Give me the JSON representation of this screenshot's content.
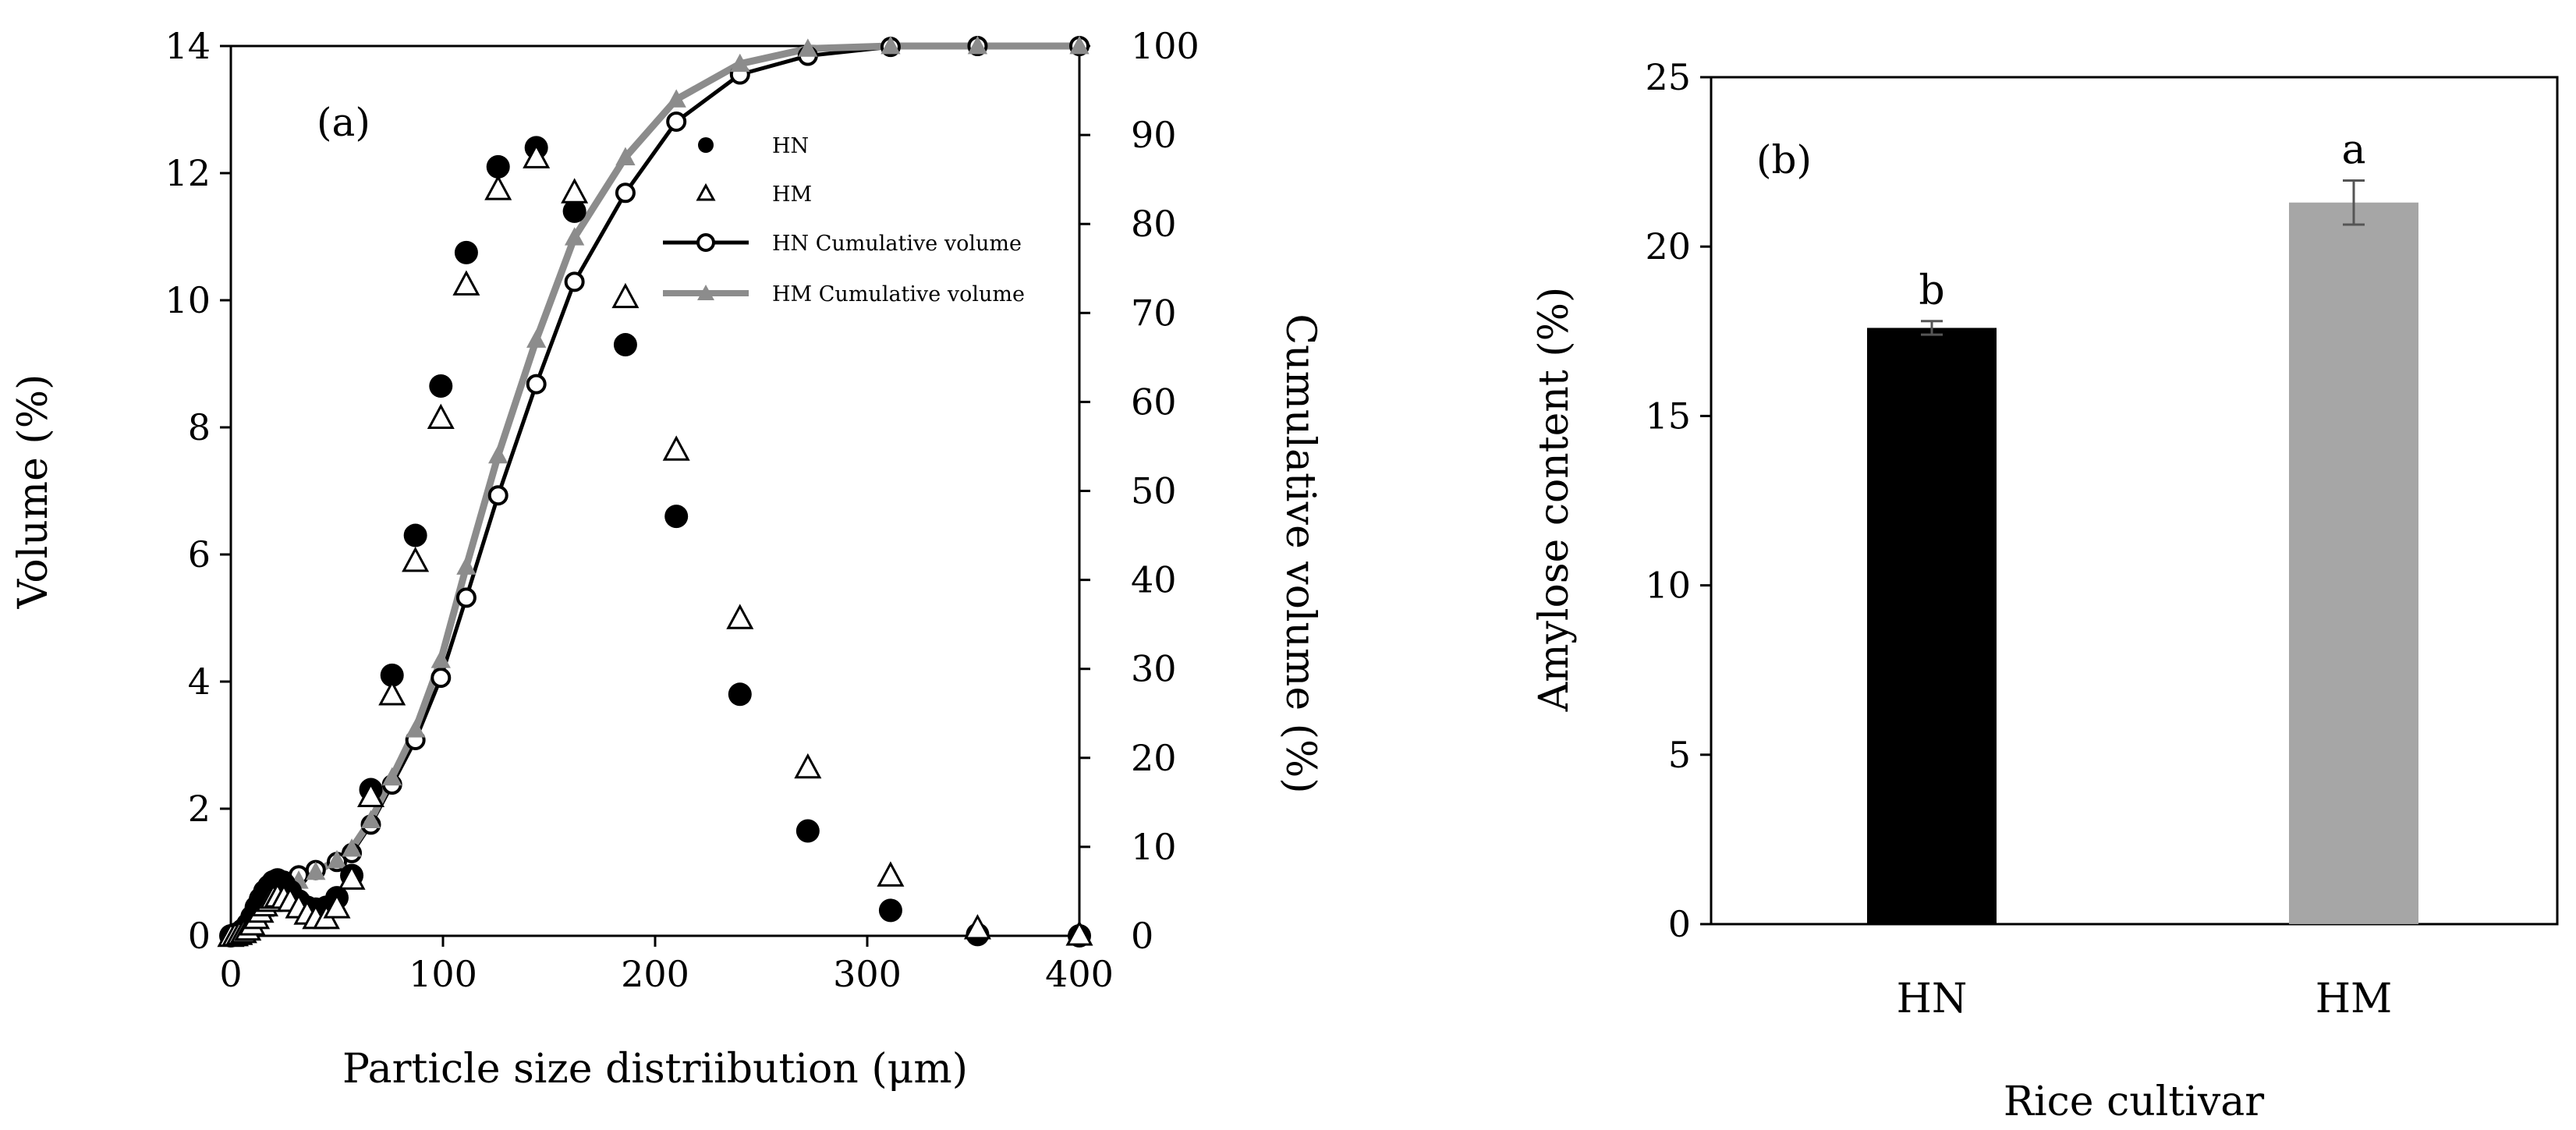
{
  "chart_data": [
    {
      "panel": "a",
      "type": "scatter",
      "panel_label": "(a)",
      "xlabel": "Particle size distriibution (μm)",
      "ylabel": "Volume (%)",
      "y2label": "Cumulative volume (%)",
      "xlim": [
        0,
        400
      ],
      "ylim": [
        0,
        14
      ],
      "y2lim": [
        0,
        100
      ],
      "xticks": [
        0,
        100,
        200,
        300,
        400
      ],
      "yticks": [
        0,
        2,
        4,
        6,
        8,
        10,
        12,
        14
      ],
      "y2ticks": [
        0,
        10,
        20,
        30,
        40,
        50,
        60,
        70,
        80,
        90,
        100
      ],
      "grid": false,
      "legend": {
        "position": "top-right",
        "entries": [
          "HN",
          "HM",
          "HN Cumulative volume",
          "HM Cumulative volume"
        ]
      },
      "series": [
        {
          "name": "HN",
          "kind": "volume",
          "axis": "left",
          "marker": "filled-circle",
          "x": [
            0,
            2,
            4,
            6,
            8,
            10,
            12,
            14,
            16,
            18,
            20,
            22,
            25,
            28,
            32,
            36,
            40,
            45,
            50,
            57,
            66,
            76,
            87,
            99,
            111,
            126,
            144,
            162,
            186,
            210,
            240,
            272,
            311,
            352,
            400
          ],
          "y": [
            0,
            0.02,
            0.05,
            0.1,
            0.18,
            0.3,
            0.45,
            0.58,
            0.7,
            0.78,
            0.85,
            0.88,
            0.82,
            0.7,
            0.55,
            0.45,
            0.42,
            0.45,
            0.6,
            0.95,
            2.3,
            4.1,
            6.3,
            8.65,
            10.75,
            12.1,
            12.4,
            11.4,
            9.3,
            6.6,
            3.8,
            1.65,
            0.4,
            0.02,
            0
          ]
        },
        {
          "name": "HM",
          "kind": "volume",
          "axis": "left",
          "marker": "open-triangle",
          "x": [
            0,
            2,
            4,
            6,
            8,
            10,
            12,
            14,
            16,
            18,
            20,
            22,
            25,
            28,
            32,
            36,
            40,
            45,
            50,
            57,
            66,
            76,
            87,
            99,
            111,
            126,
            144,
            162,
            186,
            210,
            240,
            272,
            311,
            352,
            400
          ],
          "y": [
            0,
            0.01,
            0.03,
            0.06,
            0.1,
            0.18,
            0.28,
            0.38,
            0.48,
            0.55,
            0.6,
            0.62,
            0.6,
            0.55,
            0.45,
            0.35,
            0.28,
            0.28,
            0.45,
            0.9,
            2.2,
            3.8,
            5.9,
            8.15,
            10.25,
            11.75,
            12.25,
            11.7,
            10.05,
            7.65,
            5.0,
            2.65,
            0.95,
            0.12,
            0.02
          ]
        },
        {
          "name": "HN Cumulative volume",
          "kind": "cumulative",
          "axis": "right",
          "marker": "open-circle-line",
          "x": [
            0,
            4,
            8,
            12,
            16,
            20,
            25,
            32,
            40,
            50,
            57,
            66,
            76,
            87,
            99,
            111,
            126,
            144,
            162,
            186,
            210,
            240,
            272,
            311,
            352,
            400
          ],
          "y": [
            0,
            0.3,
            1,
            2.5,
            4,
            5.2,
            6.2,
            6.8,
            7.4,
            8.3,
            9.3,
            12.5,
            17,
            22,
            29,
            38,
            49.5,
            62,
            73.5,
            83.5,
            91.5,
            96.8,
            98.9,
            99.9,
            100,
            100
          ]
        },
        {
          "name": "HM Cumulative volume",
          "kind": "cumulative",
          "axis": "right",
          "marker": "filled-triangle-line",
          "x": [
            0,
            4,
            8,
            12,
            16,
            20,
            25,
            32,
            40,
            50,
            57,
            66,
            76,
            87,
            99,
            111,
            126,
            144,
            162,
            186,
            210,
            240,
            272,
            311,
            352,
            400
          ],
          "y": [
            0,
            0.2,
            0.7,
            1.8,
            3,
            4.3,
            5.3,
            6.2,
            7.2,
            8.5,
            9.8,
            13,
            17.8,
            23.2,
            31,
            41.5,
            54,
            67,
            78.5,
            87.5,
            94,
            98,
            99.7,
            100,
            100,
            100
          ]
        }
      ]
    },
    {
      "panel": "b",
      "type": "bar",
      "panel_label": "(b)",
      "xlabel": "Rice cultivar",
      "ylabel": "Amylose content (%)",
      "categories": [
        "HN",
        "HM"
      ],
      "values": [
        17.6,
        21.3
      ],
      "errors": [
        0.2,
        0.65
      ],
      "letters": [
        "b",
        "a"
      ],
      "colors": [
        "#000000",
        "#a6a6a6"
      ],
      "ylim": [
        0,
        25
      ],
      "yticks": [
        0,
        5,
        10,
        15,
        20,
        25
      ],
      "grid": false
    }
  ]
}
